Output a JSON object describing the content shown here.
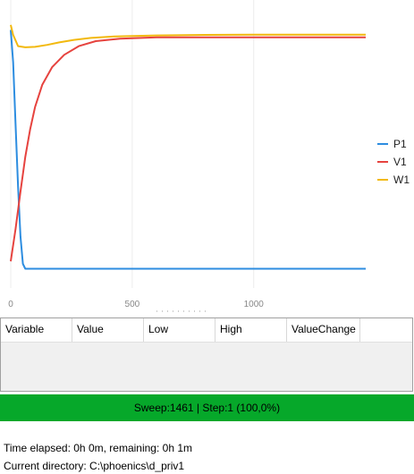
{
  "chart_data": {
    "type": "line",
    "x_ticks": [
      0,
      500,
      1000
    ],
    "xlim": [
      0,
      1461
    ],
    "ylim": [
      -0.05,
      1.05
    ],
    "legend_position": "right",
    "grid": "vertical",
    "series": [
      {
        "name": "P1",
        "color": "#2d8de0",
        "points": [
          [
            0,
            0.98
          ],
          [
            10,
            0.85
          ],
          [
            20,
            0.6
          ],
          [
            30,
            0.35
          ],
          [
            40,
            0.15
          ],
          [
            50,
            0.04
          ],
          [
            60,
            0.02
          ],
          [
            100,
            0.02
          ],
          [
            300,
            0.02
          ],
          [
            800,
            0.02
          ],
          [
            1461,
            0.02
          ]
        ]
      },
      {
        "name": "V1",
        "color": "#e6433f",
        "points": [
          [
            0,
            0.05
          ],
          [
            20,
            0.18
          ],
          [
            40,
            0.33
          ],
          [
            60,
            0.47
          ],
          [
            80,
            0.58
          ],
          [
            100,
            0.67
          ],
          [
            130,
            0.76
          ],
          [
            170,
            0.83
          ],
          [
            220,
            0.88
          ],
          [
            280,
            0.915
          ],
          [
            350,
            0.935
          ],
          [
            450,
            0.945
          ],
          [
            600,
            0.95
          ],
          [
            800,
            0.95
          ],
          [
            1461,
            0.95
          ]
        ]
      },
      {
        "name": "W1",
        "color": "#f2b90f",
        "points": [
          [
            0,
            1.0
          ],
          [
            10,
            0.96
          ],
          [
            30,
            0.915
          ],
          [
            60,
            0.91
          ],
          [
            100,
            0.912
          ],
          [
            150,
            0.92
          ],
          [
            200,
            0.93
          ],
          [
            260,
            0.94
          ],
          [
            330,
            0.948
          ],
          [
            430,
            0.954
          ],
          [
            600,
            0.958
          ],
          [
            800,
            0.96
          ],
          [
            1000,
            0.961
          ],
          [
            1461,
            0.961
          ]
        ]
      }
    ]
  },
  "grid": {
    "columns": [
      "Variable",
      "Value",
      "Low",
      "High",
      "ValueChange"
    ]
  },
  "status": {
    "text": "Sweep:1461 | Step:1  (100,0%)",
    "color": "#06a82a"
  },
  "info": {
    "time": "Time elapsed: 0h 0m, remaining: 0h 1m",
    "directory": "Current directory:  C:\\phoenics\\d_priv1"
  }
}
